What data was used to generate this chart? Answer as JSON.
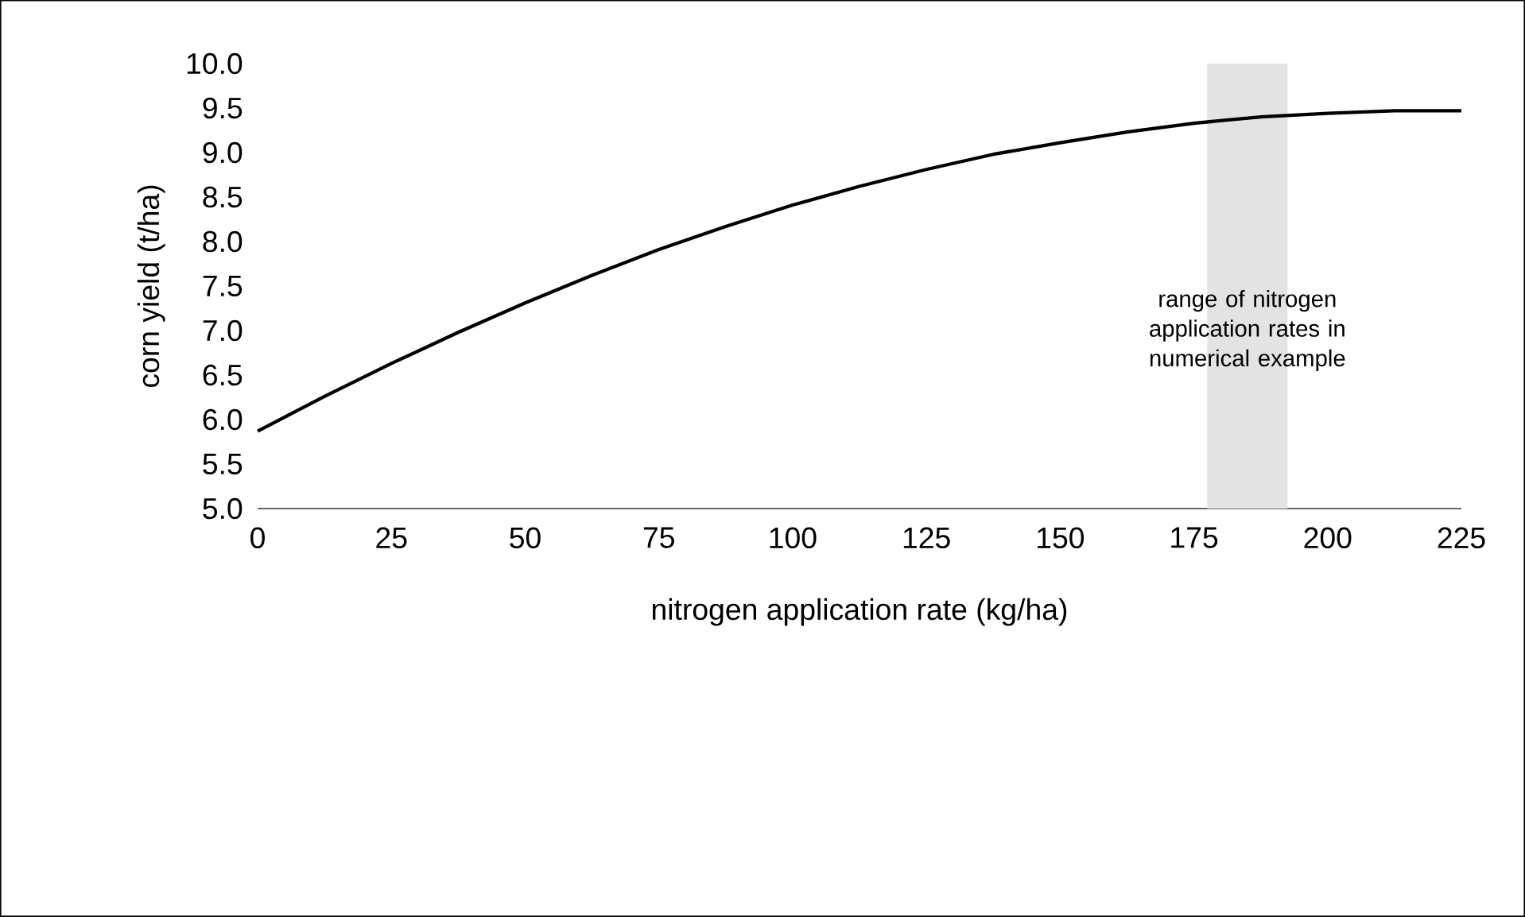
{
  "chart_data": {
    "type": "line",
    "xlabel": "nitrogen application rate (kg/ha)",
    "ylabel": "corn yield (t/ha)",
    "x": [
      0,
      12.5,
      25,
      37.5,
      50,
      62.5,
      75,
      87.5,
      100,
      112.5,
      125,
      137.5,
      150,
      162.5,
      175,
      187.5,
      200,
      212.5,
      225
    ],
    "series": [
      {
        "color": "#000000",
        "values": [
          5.87,
          6.26,
          6.63,
          6.98,
          7.31,
          7.62,
          7.91,
          8.17,
          8.41,
          8.62,
          8.81,
          8.98,
          9.11,
          9.23,
          9.33,
          9.4,
          9.44,
          9.47,
          9.47
        ]
      }
    ],
    "xlim": [
      0,
      225
    ],
    "xticks": [
      0,
      25,
      50,
      75,
      100,
      125,
      150,
      175,
      200,
      225
    ],
    "ylim": [
      5,
      10
    ],
    "yticks": [
      {
        "value": 5,
        "label": "5.0"
      },
      {
        "value": 5.5,
        "label": "5.5"
      },
      {
        "value": 6,
        "label": "6.0"
      },
      {
        "value": 6.5,
        "label": "6.5"
      },
      {
        "value": 7,
        "label": "7.0"
      },
      {
        "value": 7.5,
        "label": "7.5"
      },
      {
        "value": 8,
        "label": "8.0"
      },
      {
        "value": 8.5,
        "label": "8.5"
      },
      {
        "value": 9,
        "label": "9.0"
      },
      {
        "value": 9.5,
        "label": "9.5"
      },
      {
        "value": 10,
        "label": "10.0"
      }
    ],
    "bands": [
      {
        "axis": "x",
        "from": 177.5,
        "to": 192.5,
        "label": "range of nitrogen application rates in numerical example",
        "color": "#e3e3e3"
      }
    ],
    "grid": false,
    "marker": "none",
    "line_style": "solid"
  }
}
